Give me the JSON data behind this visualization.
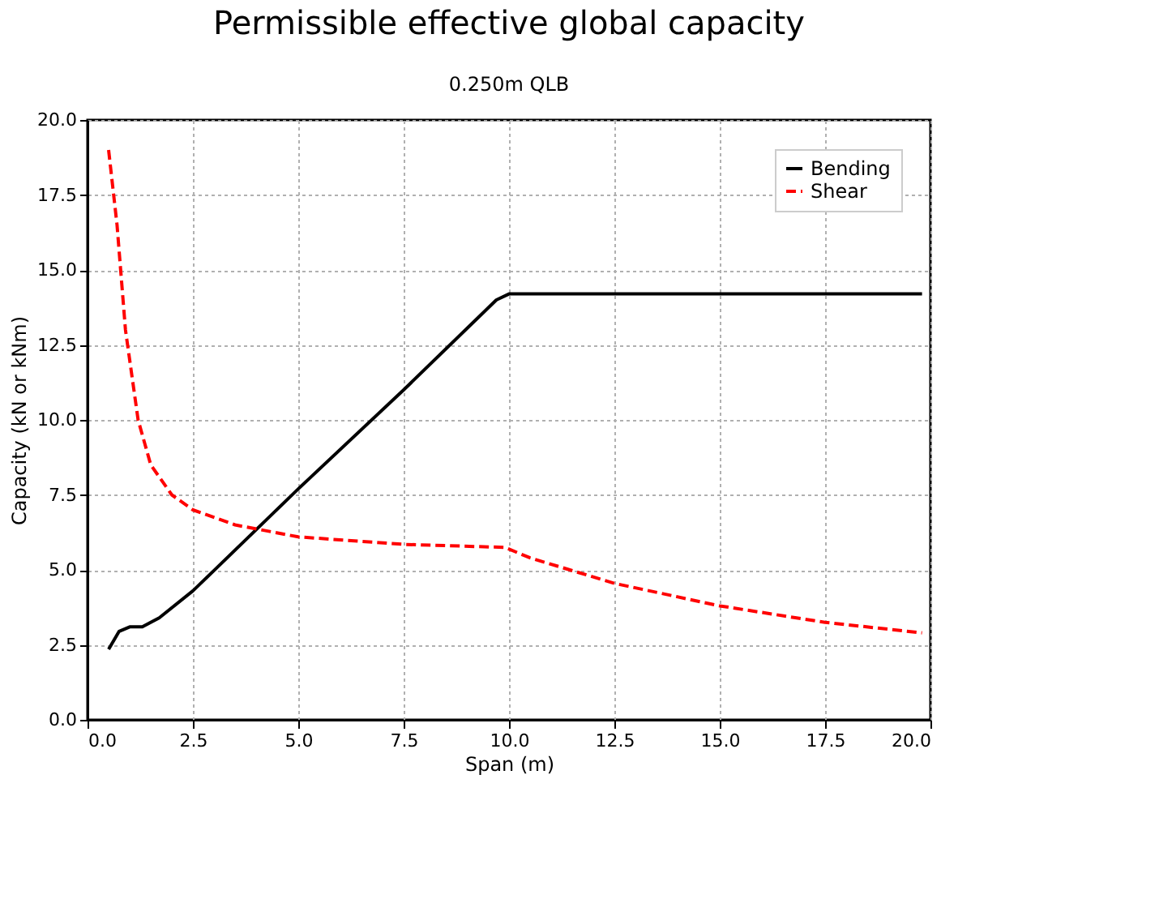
{
  "chart_data": {
    "type": "line",
    "title": "Permissible effective global capacity",
    "subtitle": "0.250m QLB",
    "xlabel": "Span (m)",
    "ylabel": "Capacity (kN or kNm)",
    "xlim": [
      0,
      20
    ],
    "ylim": [
      0,
      20
    ],
    "xticks": [
      {
        "value": 0,
        "label": "0.0"
      },
      {
        "value": 2.5,
        "label": "2.5"
      },
      {
        "value": 5,
        "label": "5.0"
      },
      {
        "value": 7.5,
        "label": "7.5"
      },
      {
        "value": 10,
        "label": "10.0"
      },
      {
        "value": 12.5,
        "label": "12.5"
      },
      {
        "value": 15,
        "label": "15.0"
      },
      {
        "value": 17.5,
        "label": "17.5"
      },
      {
        "value": 20,
        "label": "20.0"
      }
    ],
    "yticks": [
      {
        "value": 0,
        "label": "0.0"
      },
      {
        "value": 2.5,
        "label": "2.5"
      },
      {
        "value": 5,
        "label": "5.0"
      },
      {
        "value": 7.5,
        "label": "7.5"
      },
      {
        "value": 10,
        "label": "10.0"
      },
      {
        "value": 12.5,
        "label": "12.5"
      },
      {
        "value": 15,
        "label": "15.0"
      },
      {
        "value": 17.5,
        "label": "17.5"
      },
      {
        "value": 20,
        "label": "20.0"
      }
    ],
    "grid": true,
    "legend": "top right",
    "marker": "none",
    "series": [
      {
        "name": "Bending",
        "color": "#000000",
        "line_style": "solid",
        "x": [
          0.5,
          0.75,
          1.0,
          1.3,
          1.7,
          2.5,
          5,
          7.5,
          9.7,
          10,
          15,
          19.8
        ],
        "values": [
          2.35,
          2.95,
          3.1,
          3.1,
          3.4,
          4.3,
          7.7,
          11.0,
          14.0,
          14.2,
          14.2,
          14.2
        ]
      },
      {
        "name": "Shear",
        "color": "#ff0000",
        "line_style": "dashed",
        "x": [
          0.5,
          0.7,
          0.9,
          1.2,
          1.5,
          2,
          2.5,
          3.5,
          5,
          7.5,
          9.9,
          10.5,
          12.5,
          15,
          17.5,
          19.8
        ],
        "values": [
          19.0,
          16.5,
          13.0,
          10.0,
          8.5,
          7.5,
          7.0,
          6.5,
          6.1,
          5.85,
          5.75,
          5.4,
          4.55,
          3.8,
          3.25,
          2.9
        ]
      }
    ]
  }
}
